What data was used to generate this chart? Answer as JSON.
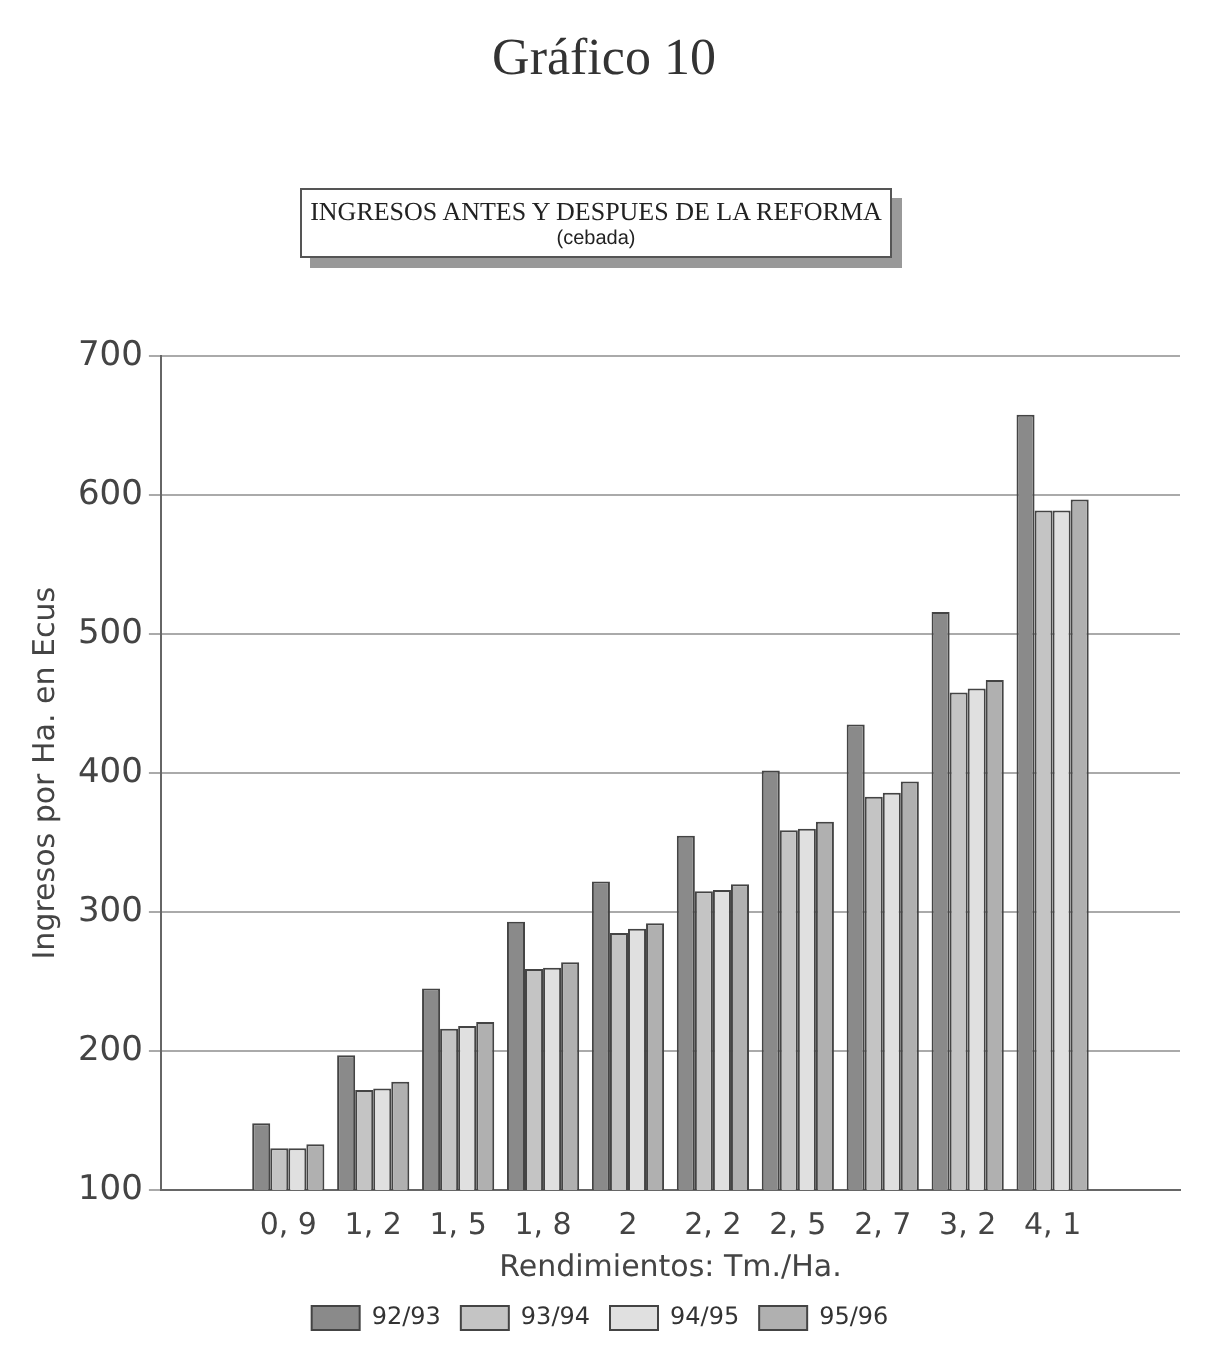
{
  "chart_data": {
    "type": "bar",
    "title": "Gráfico 10",
    "subtitle": "INGRESOS ANTES Y DESPUES DE LA REFORMA",
    "annotations": [
      "(cebada)"
    ],
    "xlabel": "Rendimientos: Tm./Ha.",
    "ylabel": "Ingresos por Ha. en Ecus",
    "categories": [
      null,
      "0, 9",
      "1, 2",
      "1, 5",
      "1, 8",
      "2",
      "2, 2",
      "2, 5",
      "2, 7",
      "3, 2",
      "4, 1",
      null
    ],
    "series": [
      {
        "name": "92/93",
        "color": "#8a8a8a",
        "values": [
          null,
          148,
          197,
          245,
          293,
          322,
          355,
          402,
          435,
          516,
          658,
          null
        ]
      },
      {
        "name": "93/94",
        "color": "#c4c4c4",
        "values": [
          null,
          130,
          172,
          216,
          259,
          285,
          315,
          359,
          383,
          458,
          589,
          null
        ]
      },
      {
        "name": "94/95",
        "color": "#e0e0e0",
        "values": [
          null,
          130,
          173,
          218,
          260,
          288,
          316,
          360,
          386,
          461,
          589,
          null
        ]
      },
      {
        "name": "95/96",
        "color": "#b0b0b0",
        "values": [
          null,
          133,
          178,
          221,
          264,
          292,
          320,
          365,
          394,
          467,
          597,
          null
        ]
      }
    ],
    "ylim": [
      100,
      700
    ],
    "yticks": [
      100,
      200,
      300,
      400,
      500,
      600,
      700
    ],
    "grid": "y",
    "legend": "bottom"
  }
}
